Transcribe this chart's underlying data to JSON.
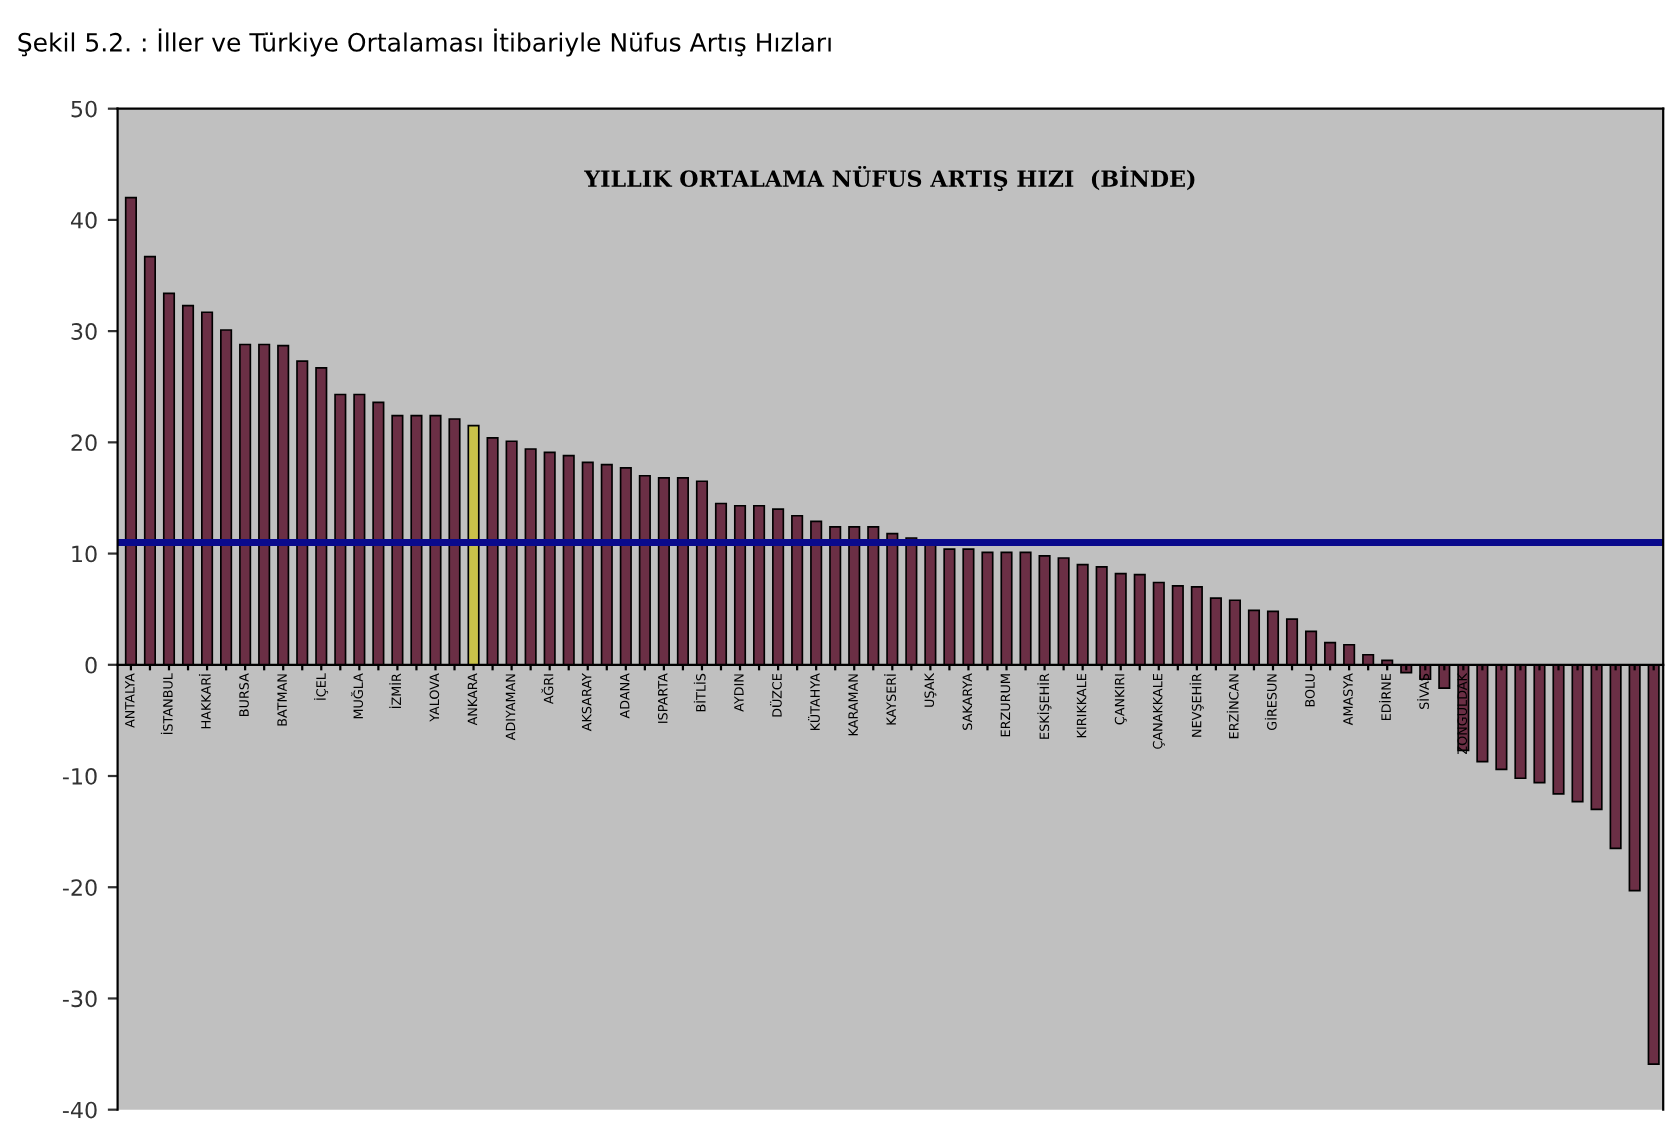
{
  "chart_data": {
    "type": "bar",
    "title": "Şekil 5.2. : İller ve Türkiye Ortalaması İtibariyle Nüfus Artış Hızları",
    "subtitle": "YILLIK ORTALAMA NÜFUS ARTIŞ HIZI  (BİNDE)",
    "categories": [
      "ANTALYA",
      null,
      "İSTANBUL",
      null,
      "HAKKARİ",
      null,
      "BURSA",
      null,
      "BATMAN",
      null,
      "İÇEL",
      null,
      "MUĞLA",
      null,
      "İZMİR",
      null,
      "YALOVA",
      null,
      "ANKARA",
      null,
      "ADIYAMAN",
      null,
      "AĞRI",
      null,
      "AKSARAY",
      null,
      "ADANA",
      null,
      "ISPARTA",
      null,
      "BİTLİS",
      null,
      "AYDIN",
      null,
      "DÜZCE",
      null,
      "KÜTAHYA",
      null,
      "KARAMAN",
      null,
      "KAYSERİ",
      null,
      "UŞAK",
      null,
      "SAKARYA",
      null,
      "ERZURUM",
      null,
      "ESKİŞEHİR",
      null,
      "KIRIKKALE",
      null,
      "ÇANKIRI",
      null,
      "ÇANAKKALE",
      null,
      "NEVŞEHİR",
      null,
      "ERZİNCAN",
      null,
      "GİRESUN",
      null,
      "BOLU",
      null,
      "AMASYA",
      null,
      "EDİRNE",
      null,
      "SİVAS",
      null,
      "ZONGULDAK",
      null,
      null,
      null,
      null,
      null,
      null,
      null,
      null,
      null,
      null
    ],
    "values": [
      42.0,
      36.7,
      33.4,
      32.3,
      31.7,
      30.1,
      28.8,
      28.8,
      28.7,
      27.3,
      26.7,
      24.3,
      24.3,
      23.6,
      22.4,
      22.4,
      22.4,
      22.1,
      21.5,
      20.4,
      20.1,
      19.4,
      19.1,
      18.8,
      18.2,
      18.0,
      17.7,
      17.0,
      16.8,
      16.8,
      16.5,
      14.5,
      14.3,
      14.3,
      14.0,
      13.4,
      12.9,
      12.4,
      12.4,
      12.4,
      11.8,
      11.4,
      11.0,
      10.4,
      10.4,
      10.1,
      10.1,
      10.1,
      9.8,
      9.6,
      9.0,
      8.8,
      8.2,
      8.1,
      7.4,
      7.1,
      7.0,
      6.0,
      5.8,
      4.9,
      4.8,
      4.1,
      3.0,
      2.0,
      1.8,
      0.9,
      0.4,
      -0.7,
      -1.3,
      -2.1,
      -7.7,
      -8.7,
      -9.4,
      -10.2,
      -10.6,
      -11.6,
      -12.3,
      -13.0,
      -16.5,
      -20.3,
      -35.9
    ],
    "colors": [
      "#6b2f45",
      "#6b2f45",
      "#6b2f45",
      "#6b2f45",
      "#6b2f45",
      "#6b2f45",
      "#6b2f45",
      "#6b2f45",
      "#6b2f45",
      "#6b2f45",
      "#6b2f45",
      "#6b2f45",
      "#6b2f45",
      "#6b2f45",
      "#6b2f45",
      "#6b2f45",
      "#6b2f45",
      "#6b2f45",
      "#c9c24a",
      "#6b2f45",
      "#6b2f45",
      "#6b2f45",
      "#6b2f45",
      "#6b2f45",
      "#6b2f45",
      "#6b2f45",
      "#6b2f45",
      "#6b2f45",
      "#6b2f45",
      "#6b2f45",
      "#6b2f45",
      "#6b2f45",
      "#6b2f45",
      "#6b2f45",
      "#6b2f45",
      "#6b2f45",
      "#6b2f45",
      "#6b2f45",
      "#6b2f45",
      "#6b2f45",
      "#6b2f45",
      "#6b2f45",
      "#6b2f45",
      "#6b2f45",
      "#6b2f45",
      "#6b2f45",
      "#6b2f45",
      "#6b2f45",
      "#6b2f45",
      "#6b2f45",
      "#6b2f45",
      "#6b2f45",
      "#6b2f45",
      "#6b2f45",
      "#6b2f45",
      "#6b2f45",
      "#6b2f45",
      "#6b2f45",
      "#6b2f45",
      "#6b2f45",
      "#6b2f45",
      "#6b2f45",
      "#6b2f45",
      "#6b2f45",
      "#6b2f45",
      "#6b2f45",
      "#6b2f45",
      "#6b2f45",
      "#6b2f45",
      "#6b2f45",
      "#6b2f45",
      "#6b2f45",
      "#6b2f45",
      "#6b2f45",
      "#6b2f45",
      "#6b2f45",
      "#6b2f45",
      "#6b2f45",
      "#6b2f45",
      "#6b2f45",
      "#6b2f45"
    ],
    "ylim": [
      -40,
      50
    ],
    "yticks": [
      -40,
      -30,
      -20,
      -10,
      0,
      10,
      20,
      30,
      40,
      50
    ],
    "ref_lines": [
      {
        "axis": "y",
        "value": 11.0,
        "color": "#0a0a8c"
      }
    ],
    "grid": false
  }
}
